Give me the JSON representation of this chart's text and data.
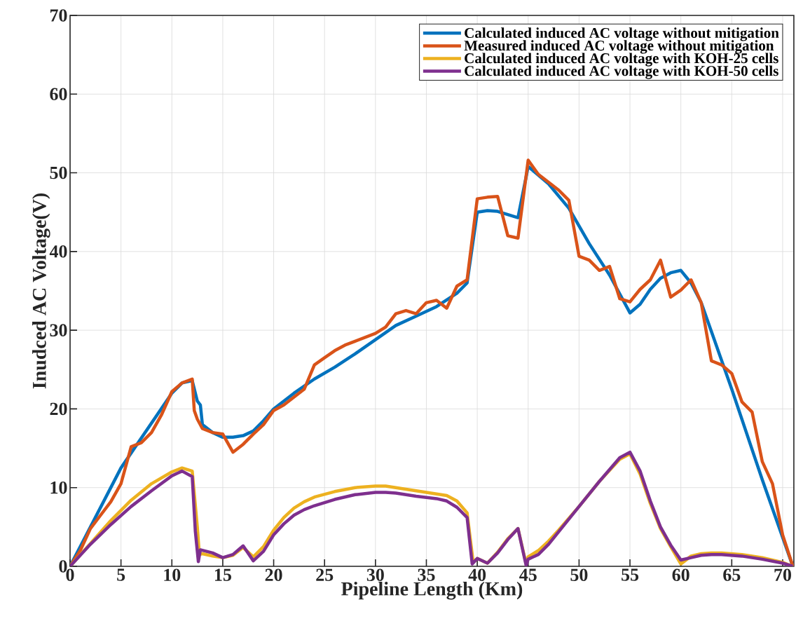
{
  "chart_data": {
    "type": "line",
    "xlabel": "Pipeline Length (Km)",
    "ylabel": "Inudced AC Voltage(V)",
    "xlim": [
      0,
      71.1
    ],
    "ylim": [
      0,
      70
    ],
    "xticks": [
      0,
      5,
      10,
      15,
      20,
      25,
      30,
      35,
      40,
      45,
      50,
      55,
      60,
      65,
      70
    ],
    "yticks": [
      0,
      10,
      20,
      30,
      40,
      50,
      60,
      70
    ],
    "grid": true,
    "legend": "top right",
    "marker": "none",
    "line_style": "solid",
    "series": [
      {
        "name": "Calculated induced AC voltage without mitigation",
        "color": "#0072bd",
        "x": [
          0,
          5,
          10,
          11,
          12,
          12.5,
          12.8,
          13,
          14,
          15,
          16,
          17,
          18,
          19,
          20,
          22,
          24,
          26,
          28,
          30,
          32,
          34,
          36,
          38,
          39,
          40,
          41,
          42,
          44,
          45,
          47,
          49,
          51,
          53,
          55,
          56,
          57,
          58,
          59,
          60,
          61,
          62,
          65,
          68,
          71
        ],
        "values": [
          0,
          12.5,
          22,
          23.3,
          23.6,
          21,
          20.5,
          18,
          17,
          16.4,
          16.4,
          16.6,
          17.2,
          18.5,
          20,
          22,
          23.8,
          25.3,
          27,
          28.8,
          30.6,
          31.8,
          33,
          34.7,
          36,
          45,
          45.2,
          45.1,
          44.3,
          50.8,
          48.6,
          45.5,
          41,
          37,
          32.2,
          33.3,
          35.2,
          36.6,
          37.3,
          37.6,
          36,
          33.5,
          22.5,
          11,
          0
        ]
      },
      {
        "name": "Measured induced AC voltage without mitigation",
        "color": "#d95319",
        "x": [
          0,
          1,
          2,
          3,
          4,
          5,
          6,
          7,
          8,
          9,
          10,
          11,
          12,
          12.2,
          12.5,
          13,
          14,
          15,
          16,
          17,
          18,
          19,
          20,
          21,
          22,
          23,
          24,
          25,
          26,
          27,
          28,
          29,
          30,
          31,
          32,
          33,
          34,
          35,
          36,
          37,
          38,
          39,
          40,
          41,
          42,
          43,
          44,
          45,
          46,
          47,
          48,
          49,
          50,
          51,
          52,
          53,
          54,
          55,
          56,
          57,
          58,
          59,
          60,
          61,
          62,
          63,
          64,
          65,
          66,
          67,
          68,
          69,
          70,
          71
        ],
        "values": [
          0,
          2,
          4.8,
          6.5,
          8.2,
          10.5,
          15.2,
          15.7,
          17,
          19.3,
          22.2,
          23.3,
          23.8,
          19.8,
          18.7,
          17.5,
          17,
          16.8,
          14.5,
          15.5,
          16.8,
          18,
          19.8,
          20.5,
          21.5,
          22.5,
          25.6,
          26.5,
          27.4,
          28.1,
          28.6,
          29.1,
          29.6,
          30.4,
          32.1,
          32.5,
          32.1,
          33.5,
          33.8,
          32.8,
          35.6,
          36.4,
          46.7,
          46.9,
          47,
          42,
          41.7,
          51.6,
          49.8,
          48.8,
          47.8,
          46.5,
          39.4,
          38.9,
          37.6,
          38.1,
          34,
          33.6,
          35.2,
          36.4,
          38.9,
          34.2,
          35.1,
          36.4,
          33.5,
          26.1,
          25.6,
          24.5,
          20.9,
          19.6,
          13.3,
          10.5,
          4,
          0
        ]
      },
      {
        "name": "Calculated induced AC voltage with KOH-25 cells",
        "color": "#edb120",
        "x": [
          0,
          2,
          4,
          6,
          8,
          10,
          11,
          12,
          12.5,
          12.7,
          13,
          14,
          15,
          16,
          17,
          18,
          19,
          20,
          21,
          22,
          23,
          24,
          26,
          28,
          30,
          31,
          32,
          34,
          36,
          37,
          38,
          39,
          39.6,
          40,
          41,
          42,
          43,
          44,
          44.8,
          45,
          46,
          47,
          48,
          50,
          52,
          54,
          55,
          56,
          57,
          58,
          59,
          60,
          61,
          62,
          63,
          64,
          66,
          68,
          70,
          71
        ],
        "values": [
          0,
          2.9,
          5.8,
          8.4,
          10.5,
          12,
          12.5,
          12.1,
          5,
          1.5,
          1.6,
          1.3,
          1.1,
          1.4,
          2.4,
          1.2,
          2.5,
          4.6,
          6.2,
          7.4,
          8.2,
          8.8,
          9.5,
          10,
          10.2,
          10.2,
          10,
          9.6,
          9.2,
          9,
          8.3,
          6.8,
          0.5,
          1,
          0.4,
          1.8,
          3.5,
          4.8,
          0.3,
          1.2,
          2,
          3.2,
          4.6,
          7.6,
          10.8,
          13.6,
          14.3,
          11.7,
          8,
          4.8,
          2.5,
          0.3,
          1.3,
          1.6,
          1.7,
          1.7,
          1.5,
          1.1,
          0.5,
          0
        ]
      },
      {
        "name": "Calculated induced AC voltage with KOH-50 cells",
        "color": "#7e2f8e",
        "x": [
          0,
          2,
          4,
          6,
          8,
          10,
          11,
          12,
          12.3,
          12.6,
          12.8,
          14,
          15,
          16,
          17,
          18,
          19,
          20,
          21,
          22,
          23,
          24,
          26,
          28,
          30,
          31,
          32,
          34,
          36,
          37,
          38,
          39,
          39.5,
          40,
          41,
          42,
          43,
          44,
          44.8,
          45,
          46,
          47,
          48,
          50,
          52,
          54,
          55,
          56,
          57,
          58,
          59,
          60,
          61,
          62,
          63,
          64,
          66,
          68,
          70,
          71
        ],
        "values": [
          0,
          2.8,
          5.3,
          7.6,
          9.6,
          11.5,
          12.1,
          11.4,
          4.5,
          0.6,
          2.1,
          1.7,
          1.1,
          1.5,
          2.6,
          0.7,
          1.9,
          4,
          5.4,
          6.5,
          7.2,
          7.7,
          8.5,
          9.1,
          9.4,
          9.4,
          9.3,
          8.9,
          8.6,
          8.3,
          7.5,
          6.2,
          0.3,
          1,
          0.4,
          1.7,
          3.4,
          4.8,
          0.1,
          0.9,
          1.5,
          2.8,
          4.4,
          7.6,
          10.8,
          13.8,
          14.5,
          12.1,
          8.3,
          5,
          2.7,
          0.8,
          1.1,
          1.4,
          1.5,
          1.5,
          1.3,
          0.9,
          0.4,
          0
        ]
      }
    ]
  }
}
